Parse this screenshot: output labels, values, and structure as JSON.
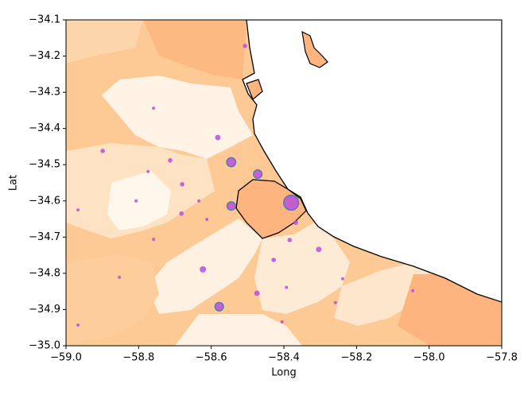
{
  "chart_data": {
    "type": "scatter",
    "x_label": "Long",
    "y_label": "Lat",
    "xlim": [
      -59.0,
      -57.8
    ],
    "ylim": [
      -35.0,
      -34.1
    ],
    "xticks": [
      {
        "value": -59.0,
        "label": "−59.0"
      },
      {
        "value": -58.8,
        "label": "−58.8"
      },
      {
        "value": -58.6,
        "label": "−58.6"
      },
      {
        "value": -58.4,
        "label": "−58.4"
      },
      {
        "value": -58.2,
        "label": "−58.2"
      },
      {
        "value": -58.0,
        "label": "−58.0"
      },
      {
        "value": -57.8,
        "label": "−57.8"
      }
    ],
    "yticks": [
      {
        "value": -35.0,
        "label": "−35.0"
      },
      {
        "value": -34.9,
        "label": "−34.9"
      },
      {
        "value": -34.8,
        "label": "−34.8"
      },
      {
        "value": -34.7,
        "label": "−34.7"
      },
      {
        "value": -34.6,
        "label": "−34.6"
      },
      {
        "value": -34.5,
        "label": "−34.5"
      },
      {
        "value": -34.4,
        "label": "−34.4"
      },
      {
        "value": -34.3,
        "label": "−34.3"
      },
      {
        "value": -34.2,
        "label": "−34.2"
      },
      {
        "value": -34.1,
        "label": "−34.1"
      }
    ],
    "color": "#b94fe0",
    "edge_color": "#5a78b0",
    "x": [
      -58.507,
      -58.759,
      -58.582,
      -58.545,
      -58.472,
      -58.899,
      -58.713,
      -58.774,
      -58.68,
      -58.807,
      -58.634,
      -58.545,
      -58.38,
      -58.967,
      -58.682,
      -58.612,
      -58.367,
      -58.759,
      -58.384,
      -58.304,
      -58.428,
      -58.623,
      -58.853,
      -58.393,
      -58.474,
      -58.238,
      -58.045,
      -58.258,
      -58.578,
      -58.967,
      -58.405
    ],
    "y": [
      -34.172,
      -34.344,
      -34.425,
      -34.493,
      -34.526,
      -34.462,
      -34.488,
      -34.519,
      -34.554,
      -34.6,
      -34.6,
      -34.614,
      -34.605,
      -34.625,
      -34.635,
      -34.651,
      -34.66,
      -34.706,
      -34.708,
      -34.734,
      -34.763,
      -34.789,
      -34.811,
      -34.839,
      -34.855,
      -34.815,
      -34.848,
      -34.881,
      -34.892,
      -34.943,
      -34.934
    ],
    "sizes": [
      2,
      1,
      3,
      8,
      7,
      2,
      2,
      1,
      2,
      1,
      1,
      7,
      22,
      1,
      2,
      1,
      2,
      1,
      2,
      3,
      2,
      4,
      1,
      1,
      3,
      1,
      1,
      1,
      7,
      1,
      1
    ]
  }
}
